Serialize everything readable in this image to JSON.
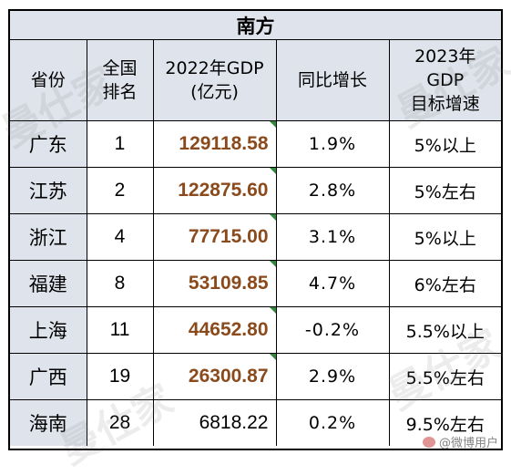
{
  "title": "南方",
  "headers": {
    "province": "省份",
    "rank_line1": "全国",
    "rank_line2": "排名",
    "gdp_line1": "2022年GDP",
    "gdp_line2": "(亿元)",
    "growth": "同比增长",
    "target_line1": "2023年",
    "target_line2": "GDP",
    "target_line3": "目标增速"
  },
  "rows": [
    {
      "province": "广东",
      "rank": "1",
      "gdp": "129118.58",
      "growth": "1.9%",
      "target": "5%以上"
    },
    {
      "province": "江苏",
      "rank": "2",
      "gdp": "122875.60",
      "growth": "2.8%",
      "target": "5%左右"
    },
    {
      "province": "浙江",
      "rank": "4",
      "gdp": "77715.00",
      "growth": "3.1%",
      "target": "5%以上"
    },
    {
      "province": "福建",
      "rank": "8",
      "gdp": "53109.85",
      "growth": "4.7%",
      "target": "6%左右"
    },
    {
      "province": "上海",
      "rank": "11",
      "gdp": "44652.80",
      "growth": "-0.2%",
      "target": "5.5%以上"
    },
    {
      "province": "广西",
      "rank": "19",
      "gdp": "26300.87",
      "growth": "2.9%",
      "target": "5.5%左右"
    },
    {
      "province": "海南",
      "rank": "28",
      "gdp": "6818.22",
      "growth": "0.2%",
      "target": "9.5%左右"
    }
  ],
  "watermark": {
    "text": "曼仕家",
    "weibo_text": "@微博用户"
  },
  "colors": {
    "header_bg": "#dfe4ec",
    "gdp_highlight": "#8a4a1c",
    "cell_marker": "#2e8b3a",
    "border": "#000000"
  }
}
